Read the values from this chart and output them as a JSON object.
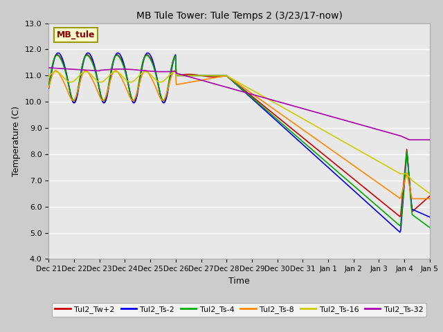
{
  "title": "MB Tule Tower: Tule Temps 2 (3/23/17-now)",
  "xlabel": "Time",
  "ylabel": "Temperature (C)",
  "ylim": [
    4.0,
    13.0
  ],
  "yticks": [
    4.0,
    5.0,
    6.0,
    7.0,
    8.0,
    9.0,
    10.0,
    11.0,
    12.0,
    13.0
  ],
  "series": {
    "Tul2_Tw+2": {
      "color": "#cc0000",
      "lw": 1.2
    },
    "Tul2_Ts-2": {
      "color": "#0000ee",
      "lw": 1.2
    },
    "Tul2_Ts-4": {
      "color": "#00aa00",
      "lw": 1.2
    },
    "Tul2_Ts-8": {
      "color": "#ff8800",
      "lw": 1.2
    },
    "Tul2_Ts-16": {
      "color": "#cccc00",
      "lw": 1.2
    },
    "Tul2_Ts-32": {
      "color": "#aa00aa",
      "lw": 1.2
    }
  },
  "annotation_box": {
    "text": "MB_tule",
    "facecolor": "#ffffcc",
    "edgecolor": "#999900",
    "textcolor": "#880000",
    "fontsize": 9,
    "fontweight": "bold"
  },
  "legend_order": [
    "Tul2_Tw+2",
    "Tul2_Ts-2",
    "Tul2_Ts-4",
    "Tul2_Ts-8",
    "Tul2_Ts-16",
    "Tul2_Ts-32"
  ],
  "tick_labels": [
    "Dec 21",
    "Dec 22",
    "Dec 23",
    "Dec 24",
    "Dec 25",
    "Dec 26",
    "Dec 27",
    "Dec 28",
    "Dec 29",
    "Dec 30",
    "Dec 31",
    "Jan 1",
    "Jan 2",
    "Jan 3",
    "Jan 4",
    "Jan 5"
  ],
  "fig_width": 6.4,
  "fig_height": 4.8,
  "dpi": 100
}
